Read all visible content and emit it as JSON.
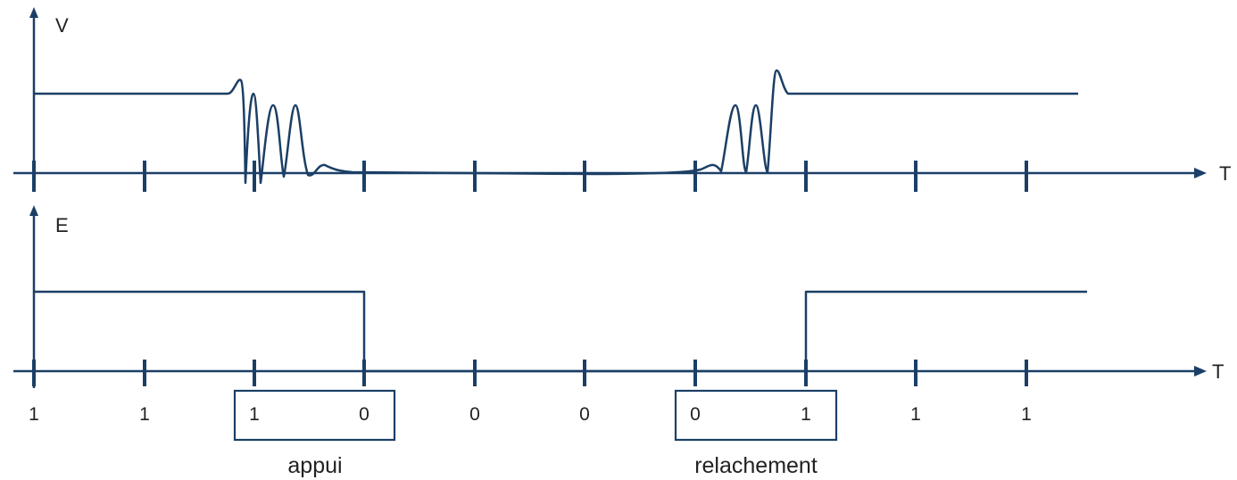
{
  "top_plot": {
    "y_axis_label": "V",
    "x_axis_label": "T"
  },
  "bottom_plot": {
    "y_axis_label": "E",
    "x_axis_label": "T"
  },
  "bit_values": [
    "1",
    "1",
    "1",
    "0",
    "0",
    "0",
    "0",
    "1",
    "1",
    "1"
  ],
  "boxes": {
    "press_label": "appui",
    "release_label": "relachement"
  },
  "colors": {
    "line": "#1b3f66",
    "text": "#222222"
  }
}
